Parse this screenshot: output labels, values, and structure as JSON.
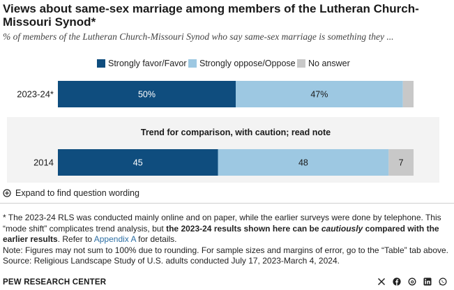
{
  "header": {
    "title": "Views about same-sex marriage among members of the Lutheran Church-Missouri Synod*",
    "subtitle": "% of members of the Lutheran Church-Missouri Synod who say same-sex marriage is something they ..."
  },
  "colors": {
    "favor": "#0f4d7e",
    "oppose": "#9dc8e2",
    "no_answer": "#c8c8c8",
    "trend_band": "#f3f3f3",
    "link": "#2c6ea3"
  },
  "chart_data": {
    "type": "bar",
    "orientation": "horizontal",
    "stacked": true,
    "categories": [
      "2023-24*",
      "2014"
    ],
    "series": [
      {
        "name": "Strongly favor/Favor",
        "values": [
          50,
          45
        ],
        "labels": [
          "50%",
          "45"
        ]
      },
      {
        "name": "Strongly oppose/Oppose",
        "values": [
          47,
          48
        ],
        "labels": [
          "47%",
          "48"
        ]
      },
      {
        "name": "No answer",
        "values": [
          3,
          7
        ],
        "labels": [
          "",
          "7"
        ]
      }
    ],
    "xlim": [
      0,
      100
    ],
    "legend_position": "top",
    "annotation": "Trend for comparison, with caution; read note"
  },
  "expand": {
    "label": "Expand to find question wording",
    "icon": "plus-circle-icon"
  },
  "notes": {
    "n1_a": "* The 2023-24 RLS was conducted mainly online and on paper, while the earlier surveys were done by telephone. This “mode shift” complicates trend analysis, but ",
    "n1_b1": "the 2023-24 results shown here can be ",
    "n1_b2": "cautiously",
    "n1_b3": " compared with the earlier results",
    "n1_c": ". Refer to ",
    "n1_link": "Appendix A",
    "n1_d": " for details.",
    "n2": "Note: Figures may not sum to 100% due to rounding. For sample sizes and margins of error, go to the “Table” tab above.",
    "n3": "Source: Religious Landscape Study of U.S. adults conducted July 17, 2023-March 4, 2024."
  },
  "footer": {
    "org": "PEW RESEARCH CENTER",
    "social": [
      "x-icon",
      "facebook-icon",
      "threads-icon",
      "linkedin-icon",
      "whatsapp-icon"
    ]
  }
}
